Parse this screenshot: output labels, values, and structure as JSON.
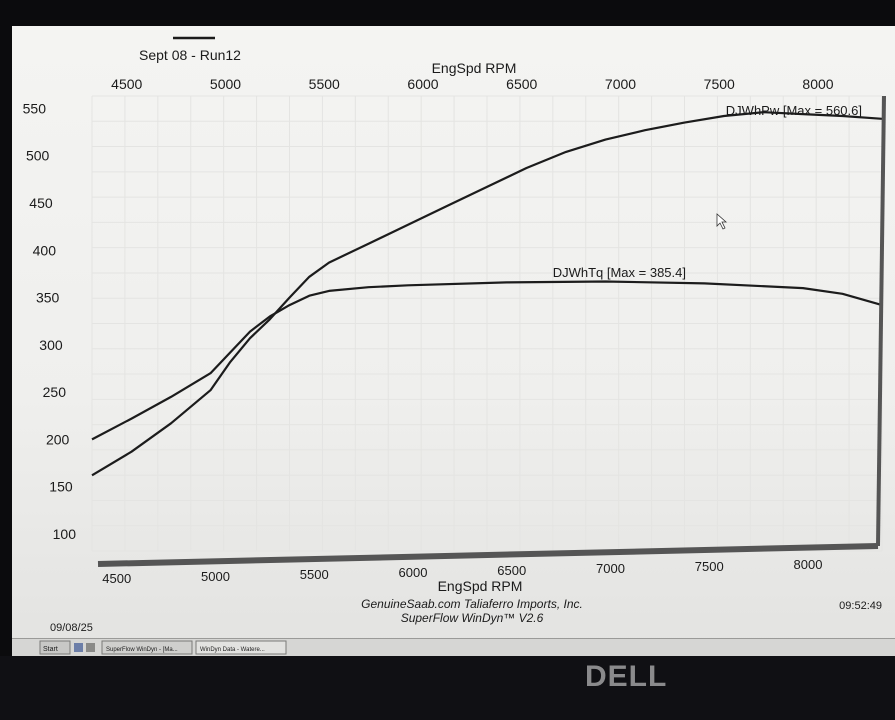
{
  "header": {
    "run_label": "Sept 08 - Run12"
  },
  "footer": {
    "date": "09/08/25",
    "time": "09:52:49",
    "credit_line1": "GenuineSaab.com  Taliaferro Imports, Inc.",
    "credit_line2": "SuperFlow WinDyn™ V2.6"
  },
  "taskbar": {
    "start_label": "Start",
    "task1_label": "SuperFlow WinDyn - [Ma...",
    "task2_label": "WinDyn Data - Watere..."
  },
  "monitor": {
    "brand": "DELL"
  },
  "chart_data": {
    "type": "line",
    "xlabel": "EngSpd  RPM",
    "ylabel": "",
    "xlim": [
      4400,
      8400
    ],
    "ylim": [
      100,
      560
    ],
    "x_ticks": [
      4500,
      5000,
      5500,
      6000,
      6500,
      7000,
      7500,
      8000
    ],
    "y_ticks": [
      100,
      150,
      200,
      250,
      300,
      350,
      400,
      450,
      500,
      550
    ],
    "series": [
      {
        "name": "DJWhPw",
        "label": "DJWhPw [Max = 560.6]",
        "color": "#1c1c1c",
        "x": [
          4400,
          4600,
          4800,
          5000,
          5100,
          5200,
          5300,
          5400,
          5500,
          5600,
          5800,
          6000,
          6200,
          6400,
          6600,
          6800,
          7000,
          7200,
          7400,
          7600,
          7800,
          8000,
          8200,
          8400
        ],
        "y": [
          180,
          205,
          235,
          270,
          300,
          325,
          345,
          368,
          390,
          405,
          425,
          445,
          465,
          485,
          505,
          522,
          535,
          545,
          553,
          560,
          564,
          562,
          560,
          557
        ]
      },
      {
        "name": "DJWhTq",
        "label": "DJWhTq [Max = 385.4]",
        "color": "#1c1c1c",
        "x": [
          4400,
          4600,
          4800,
          5000,
          5100,
          5200,
          5300,
          5400,
          5500,
          5600,
          5800,
          6000,
          6500,
          7000,
          7500,
          8000,
          8200,
          8400
        ],
        "y": [
          218,
          240,
          263,
          288,
          310,
          332,
          348,
          360,
          370,
          375,
          379,
          381,
          384,
          385,
          383,
          378,
          372,
          360
        ]
      }
    ]
  }
}
